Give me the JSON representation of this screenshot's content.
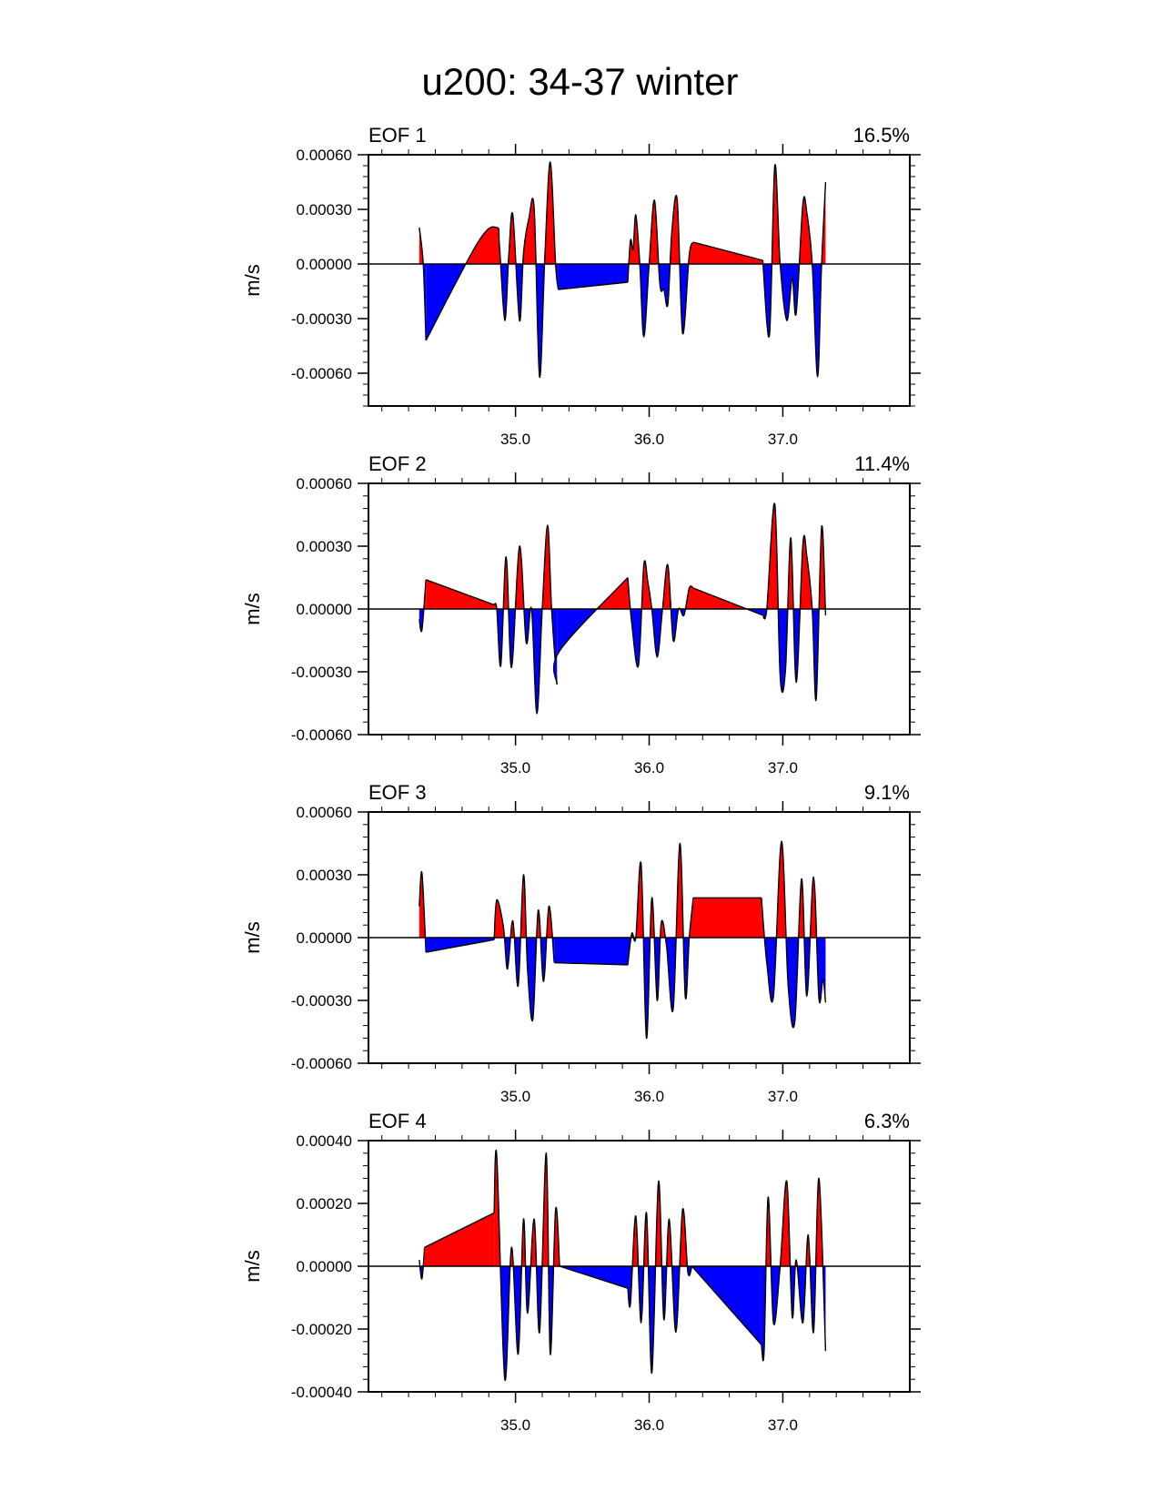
{
  "title": "u200: 34-37 winter",
  "chart_data": [
    {
      "type": "area",
      "panel": "EOF 1",
      "percent": "16.5%",
      "ylabel": "m/s",
      "ylim": [
        -0.00078,
        0.0006
      ],
      "yticks": [
        0.0006,
        0.0003,
        0.0,
        -0.0003,
        -0.0006
      ],
      "ytick_labels": [
        "0.00060",
        "0.00030",
        "0.00000",
        "-0.00030",
        "-0.00060"
      ],
      "xlim": [
        33.9,
        37.95
      ],
      "xticks": [
        35.0,
        36.0,
        37.0
      ],
      "xtick_labels": [
        "35.0",
        "36.0",
        "37.0"
      ],
      "fill_above": "#ff0000",
      "fill_below": "#0000ff",
      "segments": [
        {
          "x": [
            34.28,
            34.31,
            34.33
          ],
          "y": [
            0.0002,
            0.0,
            -0.00042
          ]
        },
        {
          "x": [
            34.33,
            34.72,
            34.86,
            34.88,
            34.92,
            34.95,
            34.98,
            35.03,
            35.06,
            35.1,
            35.14,
            35.18,
            35.22,
            35.26,
            35.3,
            35.32
          ],
          "y": [
            -0.00042,
            0.00012,
            0.0002,
            0.0001,
            -0.00031,
            5e-05,
            0.00027,
            -0.00031,
            6e-05,
            0.00025,
            0.0003,
            -0.00062,
            5e-05,
            0.00056,
            0.0,
            -0.00014
          ]
        },
        {
          "x": [
            35.32,
            35.84
          ],
          "y": [
            -0.00014,
            -0.0001
          ]
        },
        {
          "x": [
            35.84,
            35.86,
            35.88,
            35.9,
            35.93,
            35.96,
            36.0,
            36.04,
            36.08,
            36.11,
            36.14,
            36.17,
            36.21,
            36.25,
            36.3,
            36.33
          ],
          "y": [
            -0.0001,
            0.00013,
            8e-05,
            0.00027,
            0.0,
            -0.0004,
            0.0,
            0.00035,
            -0.00011,
            -0.00014,
            -0.00022,
            0.00018,
            0.00035,
            -0.00038,
            5e-05,
            0.00012
          ]
        },
        {
          "x": [
            36.33,
            36.85
          ],
          "y": [
            0.00012,
            2e-05
          ]
        },
        {
          "x": [
            36.85,
            36.9,
            36.94,
            36.98,
            37.03,
            37.07,
            37.1,
            37.15,
            37.18,
            37.22,
            37.26,
            37.29,
            37.32
          ],
          "y": [
            2e-05,
            -0.00039,
            0.00054,
            0.0,
            -0.00031,
            -8e-05,
            -0.00027,
            0.00033,
            0.00028,
            0.0,
            -0.00062,
            0.0,
            0.00045
          ]
        }
      ]
    },
    {
      "type": "area",
      "panel": "EOF 2",
      "percent": "11.4%",
      "ylabel": "m/s",
      "ylim": [
        -0.0006,
        0.0006
      ],
      "yticks": [
        0.0006,
        0.0003,
        0.0,
        -0.0003,
        -0.0006
      ],
      "ytick_labels": [
        "0.00060",
        "0.00030",
        "0.00000",
        "-0.00030",
        "-0.00060"
      ],
      "xlim": [
        33.9,
        37.95
      ],
      "xticks": [
        35.0,
        36.0,
        37.0
      ],
      "xtick_labels": [
        "35.0",
        "36.0",
        "37.0"
      ],
      "fill_above": "#ff0000",
      "fill_below": "#0000ff",
      "segments": [
        {
          "x": [
            34.28,
            34.3,
            34.33
          ],
          "y": [
            -5e-05,
            -0.0001,
            0.00014
          ]
        },
        {
          "x": [
            34.33,
            34.84
          ],
          "y": [
            0.00014,
            2e-05
          ]
        },
        {
          "x": [
            34.84,
            34.86,
            34.89,
            34.93,
            34.97,
            35.03,
            35.08,
            35.12,
            35.16,
            35.2,
            35.24,
            35.27,
            35.31
          ],
          "y": [
            2e-05,
            0.0,
            -0.00027,
            0.00025,
            -0.00028,
            0.0003,
            -0.00016,
            0.0,
            -0.0005,
            0.0,
            0.0004,
            0.0,
            -0.00036
          ]
        },
        {
          "x": [
            35.31,
            35.33,
            35.84
          ],
          "y": [
            -0.00036,
            -0.0002,
            0.00015
          ]
        },
        {
          "x": [
            35.84,
            35.87,
            35.92,
            35.96,
            35.99,
            36.02,
            36.06,
            36.1,
            36.14,
            36.18,
            36.22,
            36.26,
            36.3,
            36.33
          ],
          "y": [
            0.00015,
            -7e-05,
            -0.00027,
            0.00021,
            0.00013,
            0.0,
            -0.00023,
            0.0,
            0.00021,
            -0.00015,
            0.0,
            -3e-05,
            0.0001,
            0.0001
          ]
        },
        {
          "x": [
            36.33,
            36.85
          ],
          "y": [
            0.0001,
            -3e-05
          ]
        },
        {
          "x": [
            36.85,
            36.88,
            36.94,
            36.98,
            37.02,
            37.06,
            37.1,
            37.15,
            37.18,
            37.22,
            37.25,
            37.29,
            37.32
          ],
          "y": [
            -3e-05,
            0.0,
            0.0005,
            -0.00032,
            -0.00029,
            0.00034,
            -0.00035,
            0.00031,
            0.00025,
            0.0,
            -0.00043,
            0.00039,
            -3e-05
          ]
        }
      ]
    },
    {
      "type": "area",
      "panel": "EOF 3",
      "percent": "9.1%",
      "ylabel": "m/s",
      "ylim": [
        -0.0006,
        0.0006
      ],
      "yticks": [
        0.0006,
        0.0003,
        0.0,
        -0.0003,
        -0.0006
      ],
      "ytick_labels": [
        "0.00060",
        "0.00030",
        "0.00000",
        "-0.00030",
        "-0.00060"
      ],
      "xlim": [
        33.9,
        37.95
      ],
      "xticks": [
        35.0,
        36.0,
        37.0
      ],
      "xtick_labels": [
        "35.0",
        "36.0",
        "37.0"
      ],
      "fill_above": "#ff0000",
      "fill_below": "#0000ff",
      "segments": [
        {
          "x": [
            34.28,
            34.3,
            34.33
          ],
          "y": [
            0.00015,
            0.00031,
            -7e-05
          ]
        },
        {
          "x": [
            34.33,
            34.84
          ],
          "y": [
            -7e-05,
            -1e-05
          ]
        },
        {
          "x": [
            34.84,
            34.86,
            34.91,
            34.94,
            34.98,
            35.02,
            35.06,
            35.09,
            35.13,
            35.17,
            35.21,
            35.25,
            35.29
          ],
          "y": [
            -1e-05,
            0.00018,
            5e-05,
            -0.00015,
            8e-05,
            -0.00023,
            0.0003,
            -0.00015,
            -0.00039,
            0.00013,
            -0.00021,
            0.00015,
            -0.00012
          ]
        },
        {
          "x": [
            35.29,
            35.84
          ],
          "y": [
            -0.00012,
            -0.00013
          ]
        },
        {
          "x": [
            35.84,
            35.87,
            35.9,
            35.94,
            35.98,
            36.02,
            36.06,
            36.09,
            36.13,
            36.18,
            36.23,
            36.27,
            36.3,
            36.33
          ],
          "y": [
            -0.00013,
            2e-05,
            0.0,
            0.00035,
            -0.00048,
            0.00019,
            -0.0003,
            7e-05,
            -4e-05,
            -0.00034,
            0.00045,
            -0.00028,
            0.0,
            0.00019
          ]
        },
        {
          "x": [
            36.33,
            36.84
          ],
          "y": [
            0.00019,
            0.00019
          ]
        },
        {
          "x": [
            36.84,
            36.88,
            36.93,
            36.99,
            37.04,
            37.09,
            37.14,
            37.18,
            37.23,
            37.27,
            37.3,
            37.32
          ],
          "y": [
            0.00019,
            -0.00012,
            -0.00028,
            0.00046,
            -0.00023,
            -0.0004,
            0.00028,
            -0.00028,
            0.00029,
            -0.00029,
            -0.0002,
            -0.00031
          ]
        }
      ]
    },
    {
      "type": "area",
      "panel": "EOF 4",
      "percent": "6.3%",
      "ylabel": "m/s",
      "ylim": [
        -0.0004,
        0.0004
      ],
      "yticks": [
        0.0004,
        0.0002,
        0.0,
        -0.0002,
        -0.0004
      ],
      "ytick_labels": [
        "0.00040",
        "0.00020",
        "0.00000",
        "-0.00020",
        "-0.00040"
      ],
      "xlim": [
        33.9,
        37.95
      ],
      "xticks": [
        35.0,
        36.0,
        37.0
      ],
      "xtick_labels": [
        "35.0",
        "36.0",
        "37.0"
      ],
      "fill_above": "#ff0000",
      "fill_below": "#0000ff",
      "segments": [
        {
          "x": [
            34.28,
            34.3,
            34.32
          ],
          "y": [
            2e-05,
            -4e-05,
            6e-05
          ]
        },
        {
          "x": [
            34.32,
            34.84
          ],
          "y": [
            6e-05,
            0.00017
          ]
        },
        {
          "x": [
            34.84,
            34.86,
            34.92,
            34.97,
            35.02,
            35.06,
            35.09,
            35.14,
            35.18,
            35.23,
            35.26,
            35.3,
            35.33
          ],
          "y": [
            0.00017,
            0.00035,
            -0.00036,
            6e-05,
            -0.00028,
            0.00015,
            -0.00015,
            0.00015,
            -0.00021,
            0.00036,
            -0.00028,
            0.00018,
            0.0
          ]
        },
        {
          "x": [
            35.33,
            35.84
          ],
          "y": [
            0.0,
            -7e-05
          ]
        },
        {
          "x": [
            35.84,
            35.86,
            35.9,
            35.94,
            35.98,
            36.02,
            36.07,
            36.11,
            36.15,
            36.2,
            36.25,
            36.29,
            36.32
          ],
          "y": [
            -7e-05,
            -0.00012,
            0.00016,
            -0.00018,
            0.00017,
            -0.00034,
            0.00027,
            -0.00017,
            0.00015,
            -0.00021,
            0.00018,
            -2e-05,
            0.0
          ]
        },
        {
          "x": [
            36.32,
            36.84
          ],
          "y": [
            0.0,
            -0.00025
          ]
        },
        {
          "x": [
            36.84,
            36.86,
            36.89,
            36.93,
            36.98,
            37.03,
            37.07,
            37.1,
            37.15,
            37.19,
            37.23,
            37.27,
            37.32
          ],
          "y": [
            -0.00025,
            -0.00027,
            0.00022,
            -0.00018,
            0.0,
            0.00027,
            -0.00016,
            2e-05,
            -0.00018,
            0.0001,
            -0.00021,
            0.00028,
            -0.00027
          ]
        }
      ]
    }
  ]
}
